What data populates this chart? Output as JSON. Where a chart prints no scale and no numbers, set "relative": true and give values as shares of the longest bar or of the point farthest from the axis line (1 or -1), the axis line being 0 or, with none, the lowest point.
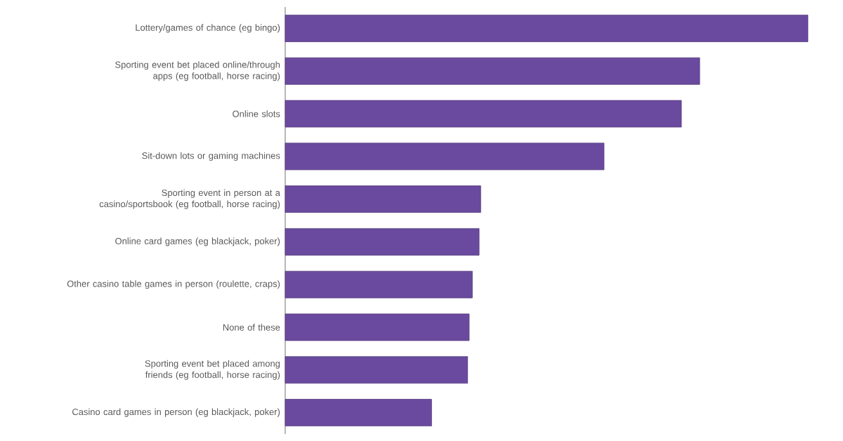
{
  "chart_data": {
    "type": "bar",
    "orientation": "horizontal",
    "relative": true,
    "color": "#6a4a9e",
    "categories": [
      "Lottery/games of chance (eg bingo)",
      "Sporting event bet placed online/through apps (eg football, horse racing)",
      "Online slots",
      "Sit-down lots or gaming machines",
      "Sporting event in person at a casino/sportsbook (eg football, horse racing)",
      "Online card games (eg blackjack, poker)",
      "Other casino table games in person (roulette, craps)",
      "None of these",
      "Sporting event bet placed among friends (eg football, horse racing)",
      "Casino card games in person (eg blackjack, poker)"
    ],
    "values": [
      1,
      0.793,
      0.758,
      0.61,
      0.374,
      0.371,
      0.358,
      0.352,
      0.349,
      0.28
    ]
  }
}
